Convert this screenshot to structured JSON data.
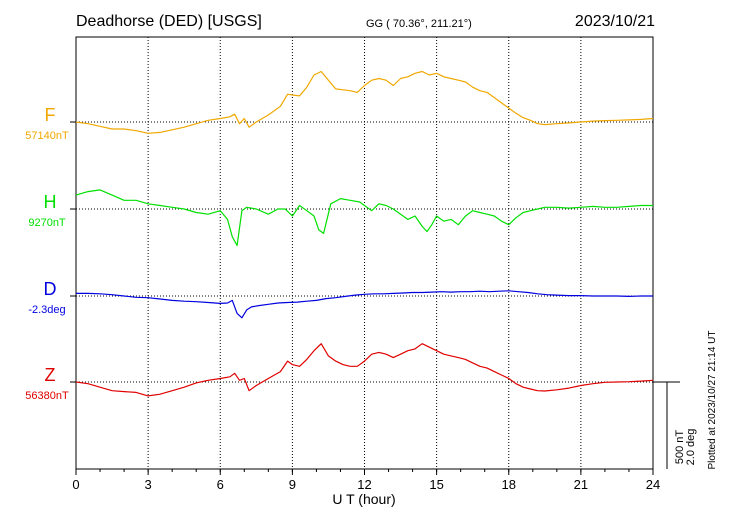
{
  "header": {
    "station": "Deadhorse (DED)  [USGS]",
    "coords": "GG ( 70.36°, 211.21°)",
    "date": "2023/10/21"
  },
  "side_note": "Plotted at 2023/10/27 21:14 UT",
  "scale_bar": {
    "label1": "500 nT",
    "label2": "2.0 deg"
  },
  "chart_data": {
    "type": "line",
    "title": "Deadhorse (DED)  [USGS]",
    "xlabel": "U T (hour)",
    "xlim": [
      0,
      24
    ],
    "xticks": [
      0,
      3,
      6,
      9,
      12,
      15,
      18,
      21,
      24
    ],
    "grid": true,
    "series": [
      {
        "name": "F",
        "baseline_label": "57140nT",
        "color": "#f0a800",
        "baseline": 57140,
        "unit": "nT",
        "x": [
          0,
          0.5,
          1,
          1.5,
          2,
          2.5,
          3,
          3.5,
          4,
          4.5,
          5,
          5.5,
          6,
          6.4,
          6.6,
          6.8,
          7,
          7.2,
          7.5,
          8,
          8.5,
          8.8,
          9,
          9.3,
          9.6,
          9.9,
          10.2,
          10.5,
          10.8,
          11.1,
          11.4,
          11.7,
          12,
          12.3,
          12.6,
          12.9,
          13.2,
          13.5,
          13.8,
          14.1,
          14.4,
          14.7,
          15,
          15.3,
          15.6,
          15.9,
          16.2,
          16.5,
          16.8,
          17.1,
          17.4,
          17.7,
          18,
          18.3,
          18.6,
          18.9,
          19.2,
          19.5,
          20,
          20.5,
          21,
          21.5,
          22,
          22.5,
          23,
          23.5,
          24
        ],
        "y": [
          57140,
          57130,
          57115,
          57100,
          57100,
          57090,
          57075,
          57080,
          57095,
          57110,
          57130,
          57150,
          57160,
          57170,
          57185,
          57130,
          57160,
          57110,
          57140,
          57180,
          57230,
          57300,
          57295,
          57290,
          57340,
          57410,
          57430,
          57380,
          57330,
          57325,
          57320,
          57310,
          57350,
          57380,
          57390,
          57380,
          57350,
          57390,
          57400,
          57420,
          57430,
          57410,
          57420,
          57400,
          57390,
          57380,
          57370,
          57340,
          57320,
          57310,
          57280,
          57250,
          57220,
          57190,
          57165,
          57150,
          57130,
          57125,
          57130,
          57135,
          57140,
          57145,
          57148,
          57150,
          57152,
          57155,
          57160
        ]
      },
      {
        "name": "H",
        "baseline_label": "9270nT",
        "color": "#00e000",
        "baseline": 9270,
        "unit": "nT",
        "x": [
          0,
          0.5,
          1,
          1.5,
          2,
          2.5,
          3,
          3.5,
          4,
          4.5,
          5,
          5.5,
          6,
          6.3,
          6.5,
          6.7,
          6.9,
          7.1,
          7.5,
          8,
          8.4,
          8.7,
          9,
          9.3,
          9.6,
          9.9,
          10.1,
          10.3,
          10.6,
          11,
          11.4,
          11.8,
          12,
          12.3,
          12.6,
          12.9,
          13.2,
          13.5,
          13.8,
          14.1,
          14.4,
          14.6,
          14.8,
          15,
          15.3,
          15.6,
          15.9,
          16.2,
          16.5,
          16.8,
          17.1,
          17.4,
          17.7,
          18,
          18.3,
          18.6,
          18.9,
          19.2,
          19.5,
          20,
          20.5,
          21,
          21.5,
          22,
          22.5,
          23,
          23.5,
          24
        ],
        "y": [
          9350,
          9370,
          9380,
          9350,
          9320,
          9320,
          9300,
          9290,
          9280,
          9270,
          9250,
          9240,
          9260,
          9210,
          9110,
          9060,
          9260,
          9280,
          9270,
          9240,
          9270,
          9270,
          9230,
          9290,
          9260,
          9230,
          9150,
          9130,
          9300,
          9330,
          9320,
          9310,
          9290,
          9260,
          9300,
          9290,
          9270,
          9240,
          9210,
          9230,
          9170,
          9140,
          9180,
          9230,
          9200,
          9210,
          9180,
          9230,
          9260,
          9250,
          9240,
          9230,
          9200,
          9180,
          9220,
          9250,
          9260,
          9270,
          9280,
          9280,
          9275,
          9280,
          9285,
          9280,
          9280,
          9285,
          9290,
          9290
        ]
      },
      {
        "name": "D",
        "baseline_label": "-2.3deg",
        "color": "#0000e0",
        "baseline": -2.3,
        "unit": "deg",
        "x": [
          0,
          0.5,
          1,
          1.5,
          2,
          2.5,
          3,
          3.5,
          4,
          4.5,
          5,
          5.5,
          6,
          6.3,
          6.5,
          6.7,
          6.9,
          7.1,
          7.3,
          7.6,
          8,
          8.4,
          8.8,
          9.2,
          9.6,
          10,
          10.4,
          10.8,
          11.2,
          11.6,
          12,
          12.4,
          12.8,
          13.2,
          13.6,
          14,
          14.4,
          14.8,
          15.2,
          15.6,
          16,
          16.4,
          16.8,
          17.2,
          17.6,
          18,
          18.4,
          18.8,
          19.2,
          19.6,
          20,
          20.5,
          21,
          21.5,
          22,
          22.5,
          23,
          23.5,
          24
        ],
        "y": [
          -2.24,
          -2.24,
          -2.25,
          -2.27,
          -2.3,
          -2.33,
          -2.34,
          -2.37,
          -2.4,
          -2.42,
          -2.43,
          -2.45,
          -2.47,
          -2.46,
          -2.4,
          -2.7,
          -2.8,
          -2.62,
          -2.55,
          -2.52,
          -2.49,
          -2.46,
          -2.45,
          -2.44,
          -2.42,
          -2.4,
          -2.36,
          -2.34,
          -2.31,
          -2.28,
          -2.26,
          -2.25,
          -2.25,
          -2.24,
          -2.23,
          -2.22,
          -2.22,
          -2.21,
          -2.2,
          -2.21,
          -2.2,
          -2.2,
          -2.19,
          -2.2,
          -2.19,
          -2.18,
          -2.2,
          -2.22,
          -2.25,
          -2.27,
          -2.28,
          -2.29,
          -2.29,
          -2.3,
          -2.3,
          -2.3,
          -2.31,
          -2.3,
          -2.3
        ]
      },
      {
        "name": "Z",
        "baseline_label": "56380nT",
        "color": "#e00000",
        "baseline": 56380,
        "unit": "nT",
        "x": [
          0,
          0.5,
          1,
          1.5,
          2,
          2.5,
          3,
          3.5,
          4,
          4.5,
          5,
          5.5,
          6,
          6.4,
          6.6,
          6.8,
          7,
          7.2,
          7.5,
          8,
          8.5,
          8.8,
          9,
          9.3,
          9.6,
          9.9,
          10.2,
          10.5,
          10.8,
          11.1,
          11.4,
          11.7,
          12,
          12.3,
          12.6,
          12.9,
          13.2,
          13.5,
          13.8,
          14.1,
          14.4,
          14.7,
          15,
          15.3,
          15.6,
          15.9,
          16.2,
          16.5,
          16.8,
          17.1,
          17.4,
          17.7,
          18,
          18.3,
          18.6,
          18.9,
          19.2,
          19.5,
          20,
          20.5,
          21,
          21.5,
          22,
          22.5,
          23,
          23.5,
          24
        ],
        "y": [
          56380,
          56370,
          56350,
          56330,
          56325,
          56320,
          56300,
          56310,
          56330,
          56350,
          56375,
          56390,
          56400,
          56410,
          56430,
          56390,
          56400,
          56330,
          56360,
          56400,
          56440,
          56500,
          56480,
          56470,
          56510,
          56560,
          56600,
          56530,
          56500,
          56480,
          56470,
          56470,
          56500,
          56540,
          56550,
          56540,
          56520,
          56540,
          56560,
          56570,
          56600,
          56580,
          56560,
          56540,
          56530,
          56520,
          56510,
          56490,
          56470,
          56460,
          56440,
          56420,
          56400,
          56370,
          56350,
          56340,
          56330,
          56328,
          56335,
          56345,
          56360,
          56370,
          56378,
          56380,
          56382,
          56385,
          56390
        ]
      }
    ]
  }
}
